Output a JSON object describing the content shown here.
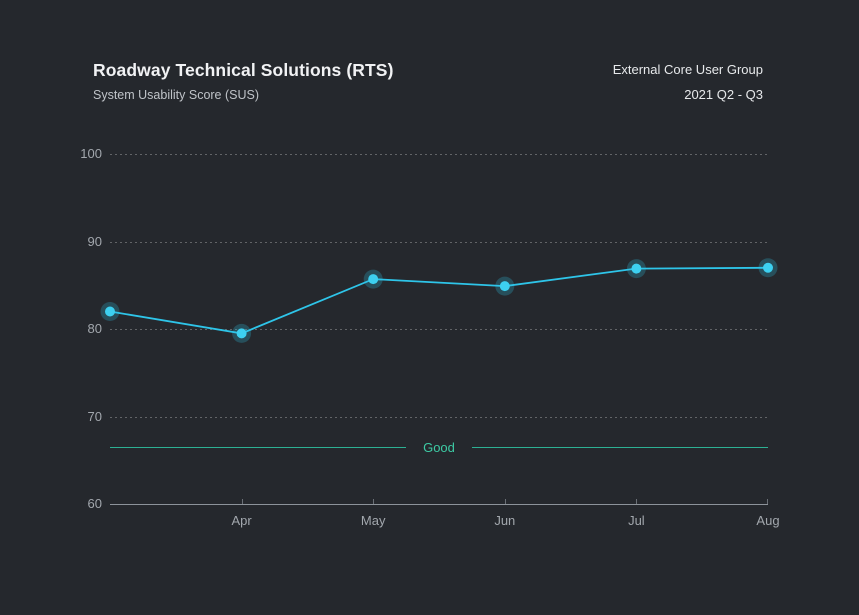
{
  "page": {
    "background": "#25282d"
  },
  "header": {
    "title": "Roadway Technical Solutions (RTS)",
    "subtitle": "System Usability Score (SUS)",
    "meta_line1": "External Core User Group",
    "meta_line2": "2021 Q2 - Q3"
  },
  "chart_data": {
    "type": "line",
    "title": "Roadway Technical Solutions (RTS)",
    "subtitle": "System Usability Score (SUS)",
    "x": [
      "",
      "Apr",
      "May",
      "Jun",
      "Jul",
      "Aug"
    ],
    "x_axis_labels": [
      "Apr",
      "May",
      "Jun",
      "Jul",
      "Aug"
    ],
    "series": [
      {
        "name": "System Usability Score (SUS)",
        "values": [
          82,
          79.5,
          85.7,
          84.9,
          86.9,
          87
        ]
      }
    ],
    "ylim": [
      60,
      100
    ],
    "yticks": [
      60,
      70,
      80,
      90,
      100
    ],
    "grid": "dotted horizontal lines at 70, 80, 90, 100; solid baseline at 60",
    "legend": "none",
    "threshold": {
      "label": "Good",
      "value": 66.5
    },
    "colors": {
      "line": "#2ec5e9",
      "marker": "#3dd0f0",
      "marker_halo": "rgba(46,197,233,0.25)",
      "threshold_line": "#2db093",
      "threshold_text": "#3dcaa4",
      "axis": "#8d939a",
      "tick_label": "#a2a7ad",
      "grid_dots": "rgba(255,255,255,0.28)"
    }
  }
}
